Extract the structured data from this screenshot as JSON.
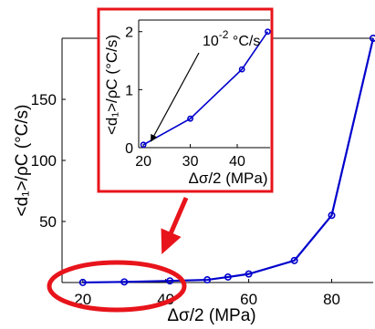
{
  "chart_data": [
    {
      "type": "line",
      "panel": "main",
      "x": [
        20,
        30,
        41,
        50,
        55,
        60,
        71,
        80,
        90
      ],
      "series": [
        {
          "values": [
            0.05,
            0.5,
            1.35,
            2.2,
            4.5,
            7,
            18,
            55,
            200
          ],
          "color": "#0000cc",
          "marker": "circle"
        }
      ],
      "xlabel": "Δσ/2 (MPa)",
      "ylabel": "<d₁>/ρC (°C/s)",
      "xlim": [
        15,
        90
      ],
      "ylim": [
        0,
        200
      ],
      "xticks": [
        20,
        40,
        60,
        80
      ],
      "yticks": [
        50,
        100,
        150
      ],
      "grid": false
    },
    {
      "type": "line",
      "panel": "inset",
      "x": [
        20,
        30,
        41,
        46.5
      ],
      "series": [
        {
          "values": [
            0.05,
            0.5,
            1.35,
            2.0
          ],
          "color": "#0000cc",
          "marker": "circle"
        }
      ],
      "xlabel": "Δσ/2 (MPa)",
      "ylabel": "<d₁>/ρC (°C/s)",
      "xlim": [
        19,
        47
      ],
      "ylim": [
        0,
        2.2
      ],
      "xticks": [
        20,
        30,
        40
      ],
      "yticks": [
        0,
        1,
        2
      ],
      "annotation": {
        "base": "10",
        "exponent": "-2",
        "unit": " °C/s"
      },
      "highlight_color": "#e8141b"
    }
  ]
}
